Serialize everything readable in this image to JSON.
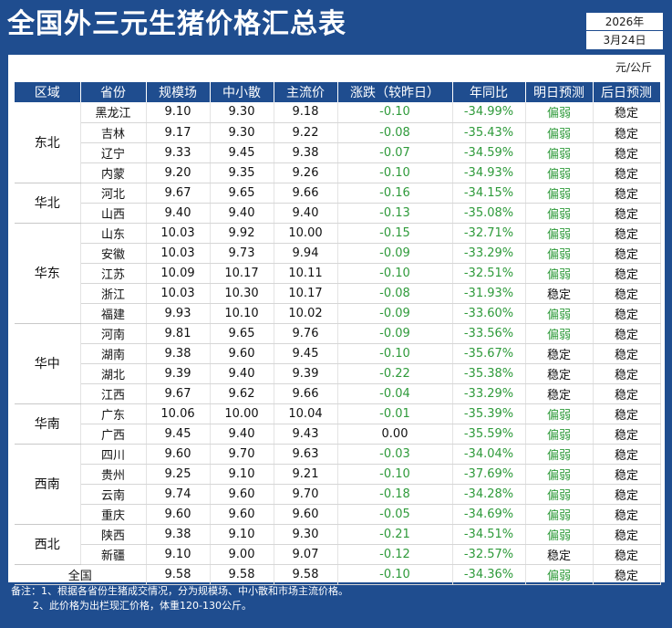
{
  "title": "全国外三元生猪价格汇总表",
  "date": {
    "year": "2026年",
    "month_day": "3月24日"
  },
  "unit": "元/公斤",
  "columns": [
    "区域",
    "省份",
    "规模场",
    "中小散",
    "主流价",
    "涨跌（较昨日）",
    "年同比",
    "明日预测",
    "后日预测"
  ],
  "rows": [
    {
      "region": "东北",
      "span": 4,
      "province": "黑龙江",
      "large": "9.10",
      "small": "9.30",
      "main": "9.18",
      "change": "-0.10",
      "yoy": "-34.99%",
      "tomorrow": "偏弱",
      "after": "稳定"
    },
    {
      "province": "吉林",
      "large": "9.17",
      "small": "9.30",
      "main": "9.22",
      "change": "-0.08",
      "yoy": "-35.43%",
      "tomorrow": "偏弱",
      "after": "稳定"
    },
    {
      "province": "辽宁",
      "large": "9.33",
      "small": "9.45",
      "main": "9.38",
      "change": "-0.07",
      "yoy": "-34.59%",
      "tomorrow": "偏弱",
      "after": "稳定"
    },
    {
      "province": "内蒙",
      "large": "9.20",
      "small": "9.35",
      "main": "9.26",
      "change": "-0.10",
      "yoy": "-34.93%",
      "tomorrow": "偏弱",
      "after": "稳定"
    },
    {
      "region": "华北",
      "span": 2,
      "province": "河北",
      "large": "9.67",
      "small": "9.65",
      "main": "9.66",
      "change": "-0.16",
      "yoy": "-34.15%",
      "tomorrow": "偏弱",
      "after": "稳定"
    },
    {
      "province": "山西",
      "large": "9.40",
      "small": "9.40",
      "main": "9.40",
      "change": "-0.13",
      "yoy": "-35.08%",
      "tomorrow": "偏弱",
      "after": "稳定"
    },
    {
      "region": "华东",
      "span": 5,
      "province": "山东",
      "large": "10.03",
      "small": "9.92",
      "main": "10.00",
      "change": "-0.15",
      "yoy": "-32.71%",
      "tomorrow": "偏弱",
      "after": "稳定"
    },
    {
      "province": "安徽",
      "large": "10.03",
      "small": "9.73",
      "main": "9.94",
      "change": "-0.09",
      "yoy": "-33.29%",
      "tomorrow": "偏弱",
      "after": "稳定"
    },
    {
      "province": "江苏",
      "large": "10.09",
      "small": "10.17",
      "main": "10.11",
      "change": "-0.10",
      "yoy": "-32.51%",
      "tomorrow": "偏弱",
      "after": "稳定"
    },
    {
      "province": "浙江",
      "large": "10.03",
      "small": "10.30",
      "main": "10.17",
      "change": "-0.08",
      "yoy": "-31.93%",
      "tomorrow": "稳定",
      "after": "稳定"
    },
    {
      "province": "福建",
      "large": "9.93",
      "small": "10.10",
      "main": "10.02",
      "change": "-0.09",
      "yoy": "-33.60%",
      "tomorrow": "偏弱",
      "after": "稳定"
    },
    {
      "region": "华中",
      "span": 4,
      "province": "河南",
      "large": "9.81",
      "small": "9.65",
      "main": "9.76",
      "change": "-0.09",
      "yoy": "-33.56%",
      "tomorrow": "偏弱",
      "after": "稳定"
    },
    {
      "province": "湖南",
      "large": "9.38",
      "small": "9.60",
      "main": "9.45",
      "change": "-0.10",
      "yoy": "-35.67%",
      "tomorrow": "稳定",
      "after": "稳定"
    },
    {
      "province": "湖北",
      "large": "9.39",
      "small": "9.40",
      "main": "9.39",
      "change": "-0.22",
      "yoy": "-35.38%",
      "tomorrow": "稳定",
      "after": "稳定"
    },
    {
      "province": "江西",
      "large": "9.67",
      "small": "9.62",
      "main": "9.66",
      "change": "-0.04",
      "yoy": "-33.29%",
      "tomorrow": "稳定",
      "after": "稳定"
    },
    {
      "region": "华南",
      "span": 2,
      "province": "广东",
      "large": "10.06",
      "small": "10.00",
      "main": "10.04",
      "change": "-0.01",
      "yoy": "-35.39%",
      "tomorrow": "偏弱",
      "after": "稳定"
    },
    {
      "province": "广西",
      "large": "9.45",
      "small": "9.40",
      "main": "9.43",
      "change": "0.00",
      "yoy": "-35.59%",
      "tomorrow": "偏弱",
      "after": "稳定"
    },
    {
      "region": "西南",
      "span": 4,
      "province": "四川",
      "large": "9.60",
      "small": "9.70",
      "main": "9.63",
      "change": "-0.03",
      "yoy": "-34.04%",
      "tomorrow": "偏弱",
      "after": "稳定"
    },
    {
      "province": "贵州",
      "large": "9.25",
      "small": "9.10",
      "main": "9.21",
      "change": "-0.10",
      "yoy": "-37.69%",
      "tomorrow": "偏弱",
      "after": "稳定"
    },
    {
      "province": "云南",
      "large": "9.74",
      "small": "9.60",
      "main": "9.70",
      "change": "-0.18",
      "yoy": "-34.28%",
      "tomorrow": "偏弱",
      "after": "稳定"
    },
    {
      "province": "重庆",
      "large": "9.60",
      "small": "9.60",
      "main": "9.60",
      "change": "-0.05",
      "yoy": "-34.69%",
      "tomorrow": "偏弱",
      "after": "稳定"
    },
    {
      "region": "西北",
      "span": 2,
      "province": "陕西",
      "large": "9.38",
      "small": "9.10",
      "main": "9.30",
      "change": "-0.21",
      "yoy": "-34.51%",
      "tomorrow": "偏弱",
      "after": "稳定"
    },
    {
      "province": "新疆",
      "large": "9.10",
      "small": "9.00",
      "main": "9.07",
      "change": "-0.12",
      "yoy": "-32.57%",
      "tomorrow": "稳定",
      "after": "稳定"
    }
  ],
  "national": {
    "label": "全国",
    "large": "9.58",
    "small": "9.58",
    "main": "9.58",
    "change": "-0.10",
    "yoy": "-34.36%",
    "tomorrow": "偏弱",
    "after": "稳定"
  },
  "notes": [
    "备注：1、根据各省份生猪成交情况，分为规模场、中小散和市场主流价格。",
    "2、此价格为出栏现汇价格，体重120-130公斤。"
  ],
  "colors": {
    "header_bg": "#1f4d8f",
    "green": "#2e9a3a"
  }
}
